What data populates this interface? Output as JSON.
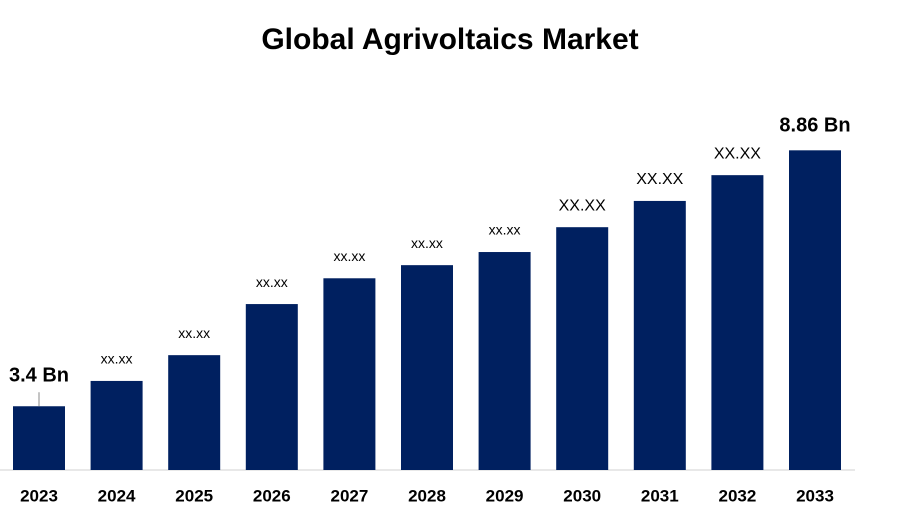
{
  "chart_data": {
    "type": "bar",
    "title": "Global Agrivoltaics Market",
    "categories": [
      "2023",
      "2024",
      "2025",
      "2026",
      "2027",
      "2028",
      "2029",
      "2030",
      "2031",
      "2032",
      "2033"
    ],
    "values": [
      3.4,
      3.94,
      4.49,
      5.58,
      6.13,
      6.41,
      6.69,
      7.22,
      7.78,
      8.33,
      8.86
    ],
    "value_labels": [
      "3.4 Bn",
      "xx.xx",
      "xx.xx",
      "xx.xx",
      "xx.xx",
      "xx.xx",
      "xx.xx",
      "XX.XX",
      "XX.XX",
      "XX.XX",
      "8.86 Bn"
    ],
    "color": "#002060",
    "ylim": [
      2.04,
      9.72
    ]
  }
}
